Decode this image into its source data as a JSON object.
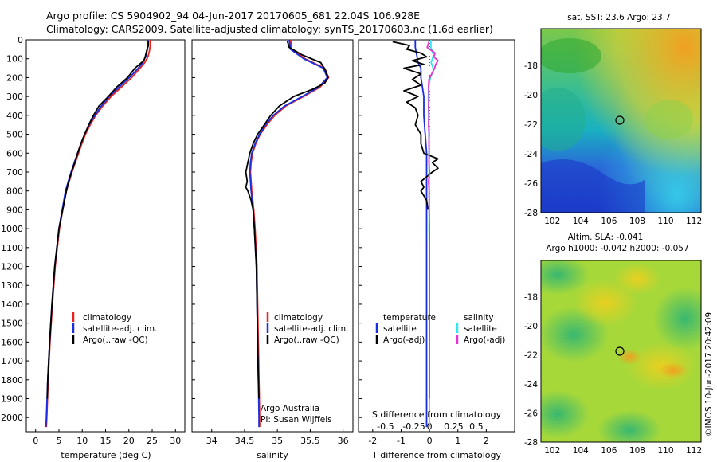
{
  "title": {
    "line1": "Argo profile: CS 5904902_94 04-Jun-2017 20170605_681 22.04S 106.928E",
    "line2": "Climatology: CARS2009. Satellite-adjusted climatology: synTS_20170603.nc (1.6d earlier)"
  },
  "side_label": "©IMOS 10-Jun-2017 20:42:09",
  "colors": {
    "climatology": "#e8231e",
    "satellite": "#1a2ee0",
    "argo": "#000000",
    "satellite_s": "#33e6f0",
    "argo_s": "#e632d0"
  },
  "panel1": {
    "xlabel": "temperature (deg C)",
    "legend": [
      "climatology",
      "satellite-adj. clim.",
      "Argo(..raw -QC)"
    ]
  },
  "panel2": {
    "xlabel": "salinity",
    "legend": [
      "climatology",
      "satellite-adj. clim.",
      "Argo(..raw -QC)"
    ],
    "note1": "Argo Australia",
    "note2": "PI: Susan Wijffels"
  },
  "panel3": {
    "xlabel": "T difference from climatology",
    "top_xlabel": "S difference from climatology",
    "legend_t_title": "temperature",
    "legend_s_title": "salinity",
    "legend_t": [
      "satellite",
      "Argo(-adj)"
    ],
    "legend_s": [
      "satellite",
      "Argo(-adj)"
    ]
  },
  "map1": {
    "title": "sat. SST: 23.6 Argo: 23.7"
  },
  "map2": {
    "title1": "Altim. SLA: -0.041",
    "title2": "Argo h1000: -0.042 h2000: -0.057"
  },
  "chart_data": [
    {
      "type": "line",
      "xlabel": "temperature (deg C)",
      "ylabel": "",
      "xlim": [
        -2,
        32
      ],
      "ylim": [
        2075,
        0
      ],
      "xticks": [
        0,
        5,
        10,
        15,
        20,
        25,
        30
      ],
      "yticks": [
        0,
        100,
        200,
        300,
        400,
        500,
        600,
        700,
        800,
        900,
        1000,
        1100,
        1200,
        1300,
        1400,
        1500,
        1600,
        1700,
        1800,
        1900,
        2000
      ],
      "series": [
        {
          "name": "climatology",
          "color": "#e8231e",
          "y": [
            0,
            30,
            60,
            90,
            120,
            150,
            200,
            250,
            300,
            350,
            400,
            450,
            500,
            550,
            600,
            650,
            700,
            750,
            800,
            900,
            1000,
            1200,
            1400,
            1600,
            1800,
            2000,
            2050
          ],
          "x": [
            24.6,
            24.6,
            24.4,
            24.1,
            23.4,
            22.4,
            20.6,
            18.4,
            16.2,
            14.4,
            12.9,
            11.7,
            10.7,
            9.9,
            9.2,
            8.5,
            7.8,
            7.2,
            6.6,
            5.8,
            5.1,
            4.2,
            3.6,
            3.1,
            2.7,
            2.4,
            2.3
          ]
        },
        {
          "name": "satellite-adj. clim.",
          "color": "#1a2ee0",
          "y": [
            0,
            30,
            60,
            90,
            120,
            150,
            200,
            250,
            300,
            350,
            400,
            450,
            500,
            550,
            600,
            650,
            700,
            750,
            800,
            900,
            1000,
            1200,
            1400,
            1600,
            1800,
            2000,
            2050
          ],
          "x": [
            24.1,
            24.1,
            23.9,
            23.6,
            23.0,
            22.0,
            20.1,
            17.9,
            15.8,
            14.1,
            12.7,
            11.5,
            10.5,
            9.7,
            9.0,
            8.3,
            7.6,
            7.0,
            6.4,
            5.7,
            5.0,
            4.1,
            3.5,
            3.0,
            2.6,
            2.3,
            2.2
          ]
        },
        {
          "name": "Argo(..raw -QC)",
          "color": "#000000",
          "y": [
            5,
            30,
            50,
            70,
            90,
            110,
            150,
            200,
            250,
            300,
            350,
            400,
            450,
            500,
            550,
            600,
            650,
            700,
            750,
            800,
            900,
            1000,
            1200,
            1400,
            1600,
            1800,
            1900
          ],
          "x": [
            24.2,
            24.2,
            23.9,
            23.7,
            23.5,
            23.2,
            21.3,
            19.7,
            17.4,
            15.6,
            13.6,
            12.4,
            11.4,
            10.5,
            9.7,
            9.0,
            8.4,
            7.7,
            7.1,
            6.6,
            5.8,
            5.0,
            4.1,
            3.5,
            3.0,
            2.6,
            2.5
          ]
        }
      ]
    },
    {
      "type": "line",
      "xlabel": "salinity",
      "ylabel": "",
      "xlim": [
        33.7,
        36.15
      ],
      "ylim": [
        2075,
        0
      ],
      "xticks": [
        34,
        34.5,
        35,
        35.5,
        36
      ],
      "series": [
        {
          "name": "climatology",
          "color": "#e8231e",
          "y": [
            0,
            50,
            100,
            150,
            200,
            250,
            300,
            350,
            400,
            450,
            500,
            550,
            600,
            650,
            700,
            750,
            800,
            900,
            1000,
            1200,
            1400,
            1600,
            1800,
            2000,
            2050
          ],
          "x": [
            35.2,
            35.22,
            35.42,
            35.72,
            35.78,
            35.65,
            35.4,
            35.13,
            34.96,
            34.84,
            34.74,
            34.67,
            34.62,
            34.6,
            34.59,
            34.6,
            34.61,
            34.64,
            34.66,
            34.69,
            34.7,
            34.71,
            34.72,
            34.73,
            34.73
          ]
        },
        {
          "name": "satellite-adj. clim.",
          "color": "#1a2ee0",
          "y": [
            0,
            50,
            100,
            150,
            200,
            250,
            300,
            350,
            400,
            450,
            500,
            550,
            600,
            650,
            700,
            750,
            800,
            900,
            1000,
            1200,
            1400,
            1600,
            1800,
            2000,
            2050
          ],
          "x": [
            35.18,
            35.2,
            35.4,
            35.7,
            35.76,
            35.63,
            35.38,
            35.11,
            34.94,
            34.82,
            34.73,
            34.66,
            34.61,
            34.59,
            34.58,
            34.59,
            34.6,
            34.63,
            34.65,
            34.68,
            34.69,
            34.7,
            34.71,
            34.72,
            34.72
          ]
        },
        {
          "name": "Argo(..raw -QC)",
          "color": "#000000",
          "y": [
            5,
            40,
            80,
            120,
            160,
            200,
            230,
            260,
            300,
            350,
            400,
            450,
            500,
            550,
            600,
            650,
            700,
            750,
            780,
            800,
            850,
            900,
            1000,
            1200,
            1400,
            1600,
            1800,
            1900
          ],
          "x": [
            35.15,
            35.18,
            35.38,
            35.66,
            35.73,
            35.77,
            35.72,
            35.55,
            35.25,
            35.03,
            34.9,
            34.8,
            34.7,
            34.63,
            34.58,
            34.55,
            34.52,
            34.54,
            34.52,
            34.55,
            34.6,
            34.63,
            34.65,
            34.68,
            34.69,
            34.7,
            34.71,
            34.72
          ]
        }
      ]
    },
    {
      "type": "line",
      "xlabel": "T difference from climatology",
      "top_xlabel": "S difference from climatology",
      "xlim": [
        -2.5,
        3
      ],
      "ylim": [
        2075,
        0
      ],
      "xticks": [
        -2,
        -1,
        0,
        1,
        2
      ],
      "top_xticks": [
        "-0.5",
        "-0.25",
        "0",
        "0.25",
        "0.5"
      ],
      "series": [
        {
          "name": "temperature satellite",
          "color": "#1a2ee0",
          "y": [
            0,
            40,
            80,
            120,
            150,
            200,
            250,
            300,
            400,
            500,
            600,
            700,
            800,
            1000,
            1200,
            1400,
            1600,
            1800,
            2000,
            2050
          ],
          "x": [
            -0.5,
            -0.5,
            -0.45,
            -0.4,
            -0.3,
            -0.3,
            -0.25,
            -0.2,
            -0.2,
            -0.15,
            -0.1,
            -0.1,
            -0.1,
            -0.1,
            -0.1,
            -0.1,
            -0.1,
            -0.1,
            -0.1,
            -0.1
          ]
        },
        {
          "name": "temperature Argo(-adj)",
          "color": "#000000",
          "y": [
            10,
            30,
            50,
            70,
            90,
            110,
            130,
            150,
            180,
            210,
            240,
            270,
            300,
            330,
            360,
            400,
            450,
            500,
            550,
            600,
            630,
            650,
            680,
            700,
            750,
            780,
            800,
            850,
            900
          ],
          "x": [
            -1.3,
            -0.7,
            -0.8,
            -0.3,
            -0.1,
            -0.6,
            -0.2,
            -0.9,
            -0.3,
            -0.6,
            -0.3,
            -0.9,
            -0.4,
            -0.8,
            -0.5,
            -0.4,
            -0.5,
            -0.3,
            -0.3,
            -0.2,
            0.3,
            0.1,
            0.3,
            0.1,
            -0.3,
            -0.2,
            -0.3,
            -0.1,
            -0.05
          ]
        },
        {
          "name": "salinity satellite",
          "color": "#33e6f0",
          "y": [
            0,
            40,
            80,
            120,
            160,
            200,
            250,
            300,
            400,
            500,
            600,
            700,
            800,
            1000,
            1200,
            1400,
            1600,
            1800,
            2000,
            2050
          ],
          "x": [
            0.05,
            0.05,
            0.14,
            0.06,
            0.15,
            0.03,
            -0.03,
            -0.04,
            -0.03,
            -0.02,
            -0.02,
            -0.01,
            -0.01,
            -0.01,
            0,
            0,
            0,
            0,
            0,
            0
          ]
        },
        {
          "name": "salinity Argo(-adj)",
          "color": "#e632d0",
          "y": [
            10,
            40,
            70,
            90,
            110,
            130,
            150,
            180,
            210,
            250,
            300,
            350,
            400,
            450,
            500,
            550,
            600,
            650,
            700,
            750,
            800,
            900,
            1000,
            1200,
            1400,
            1600,
            1800,
            1900
          ],
          "x": [
            -0.02,
            -0.08,
            0.2,
            0.15,
            0.3,
            0.22,
            0.18,
            0.08,
            -0.02,
            -0.03,
            -0.02,
            -0.03,
            -0.02,
            -0.03,
            -0.01,
            -0.02,
            -0.01,
            -0.02,
            0,
            -0.03,
            -0.01,
            -0.01,
            0,
            0,
            0,
            0,
            0,
            0
          ]
        }
      ]
    },
    {
      "type": "heatmap",
      "title": "sat. SST: 23.6 Argo: 23.7",
      "xlim": [
        101.2,
        112.5
      ],
      "ylim": [
        -28,
        -15.5
      ],
      "xticks": [
        102,
        104,
        106,
        108,
        110,
        112
      ],
      "yticks": [
        -18,
        -20,
        -22,
        -24,
        -26,
        -28
      ],
      "marker": {
        "lon": 106.928,
        "lat": -22.04
      }
    },
    {
      "type": "heatmap",
      "title": "Altim. SLA: -0.041",
      "subtitle": "Argo h1000: -0.042 h2000: -0.057",
      "xlim": [
        101.2,
        112.5
      ],
      "ylim": [
        -28,
        -15.5
      ],
      "xticks": [
        102,
        104,
        106,
        108,
        110,
        112
      ],
      "yticks": [
        -18,
        -20,
        -22,
        -24,
        -26,
        -28
      ],
      "marker": {
        "lon": 106.928,
        "lat": -22.04
      }
    }
  ]
}
